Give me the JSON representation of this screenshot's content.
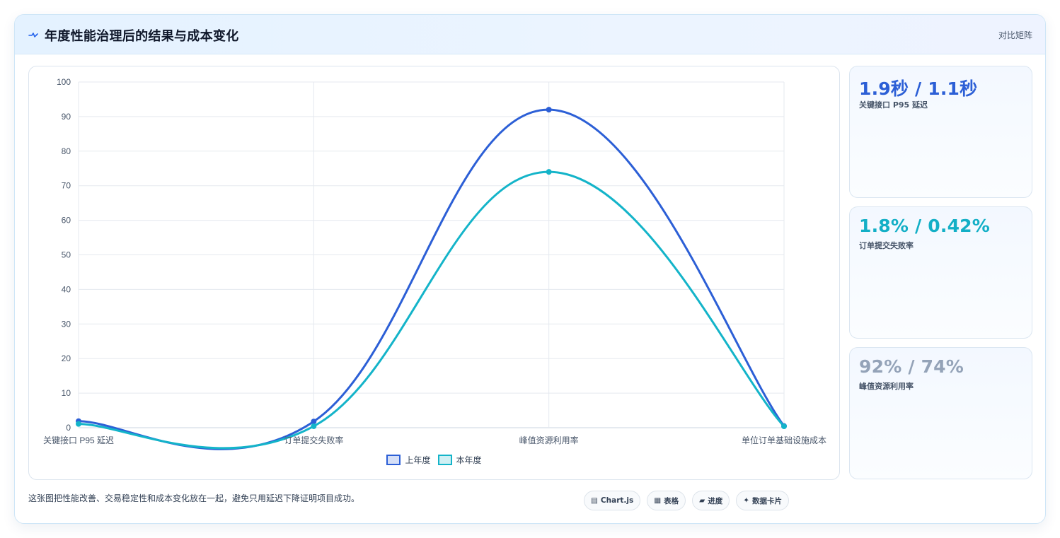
{
  "header": {
    "title": "年度性能治理后的结果与成本变化",
    "action": "对比矩阵",
    "icon": "pulse-icon"
  },
  "chart_data": {
    "type": "line",
    "categories": [
      "关键接口 P95 延迟",
      "订单提交失败率",
      "峰值资源利用率",
      "单位订单基础设施成本"
    ],
    "series": [
      {
        "name": "上年度",
        "values": [
          1.9,
          1.8,
          92,
          0.5
        ],
        "color": "#2c5fd6"
      },
      {
        "name": "本年度",
        "values": [
          1.1,
          0.42,
          74,
          0.4
        ],
        "color": "#14b4c9"
      }
    ],
    "yticks": [
      0,
      10,
      20,
      30,
      40,
      50,
      60,
      70,
      80,
      90,
      100
    ],
    "ylim": [
      0,
      100
    ],
    "grid": true,
    "legend_position": "bottom"
  },
  "kpis": [
    {
      "value": "1.9秒 / 1.1秒",
      "label": "关键接口 P95 延迟",
      "color": "#2c5fd6"
    },
    {
      "value": "1.8% / 0.42%",
      "label": "订单提交失败率",
      "color": "#13afc6"
    },
    {
      "value": "92% / 74%",
      "label": "峰值资源利用率",
      "color": "#94a3b8"
    }
  ],
  "footnote": "这张图把性能改善、交易稳定性和成本变化放在一起，避免只用延迟下降证明项目成功。",
  "chips": [
    {
      "label": "Chart.js",
      "glyph": "▤"
    },
    {
      "label": "表格",
      "glyph": "▦"
    },
    {
      "label": "进度",
      "glyph": "▰"
    },
    {
      "label": "数据卡片",
      "glyph": "✦"
    }
  ]
}
